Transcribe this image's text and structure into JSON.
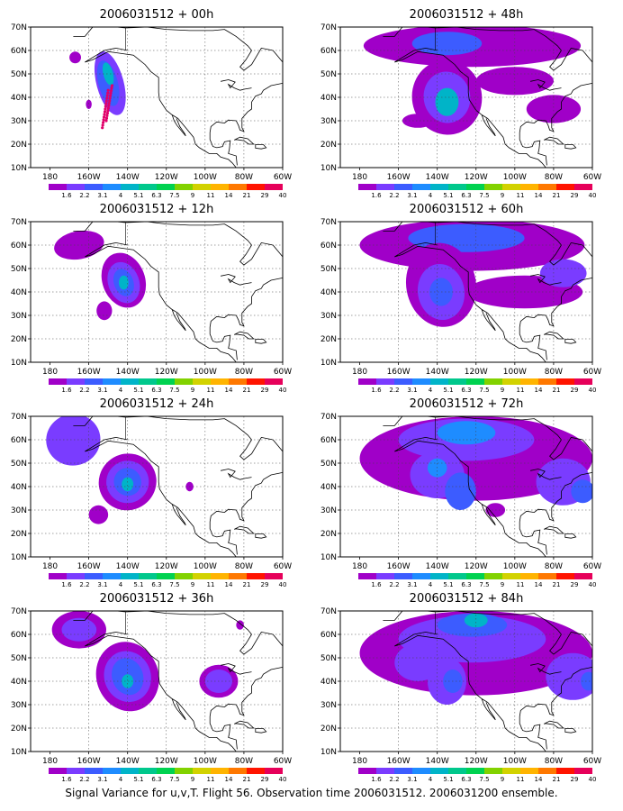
{
  "figure": {
    "caption": "Signal Variance for u,v,T. Flight 56. Observation time 2006031512. 2006031200 ensemble.",
    "lat_ticks": [
      "10N",
      "20N",
      "30N",
      "40N",
      "50N",
      "60N",
      "70N"
    ],
    "lon_ticks": [
      "180",
      "160W",
      "140W",
      "120W",
      "100W",
      "80W",
      "60W"
    ],
    "colorbar_labels": [
      "1.6",
      "2.2",
      "3.1",
      "4",
      "5.1",
      "6.3",
      "7.5",
      "9",
      "11",
      "14",
      "21",
      "29",
      "40"
    ],
    "colorbar_colors": [
      "#a000c8",
      "#7a3cff",
      "#3c5cff",
      "#1e8cff",
      "#00b4c8",
      "#00c88c",
      "#00d250",
      "#82d200",
      "#d2d200",
      "#ffb400",
      "#ff7800",
      "#ff1400",
      "#e6005a"
    ]
  },
  "panels": [
    {
      "title": "2006031512 + 00h",
      "lead": 0,
      "has_track": true
    },
    {
      "title": "2006031512 + 48h",
      "lead": 48,
      "has_track": false
    },
    {
      "title": "2006031512 + 12h",
      "lead": 12,
      "has_track": false
    },
    {
      "title": "2006031512 + 60h",
      "lead": 60,
      "has_track": false
    },
    {
      "title": "2006031512 + 24h",
      "lead": 24,
      "has_track": false
    },
    {
      "title": "2006031512 + 72h",
      "lead": 72,
      "has_track": false
    },
    {
      "title": "2006031512 + 36h",
      "lead": 36,
      "has_track": false
    },
    {
      "title": "2006031512 + 84h",
      "lead": 84,
      "has_track": false
    }
  ]
}
